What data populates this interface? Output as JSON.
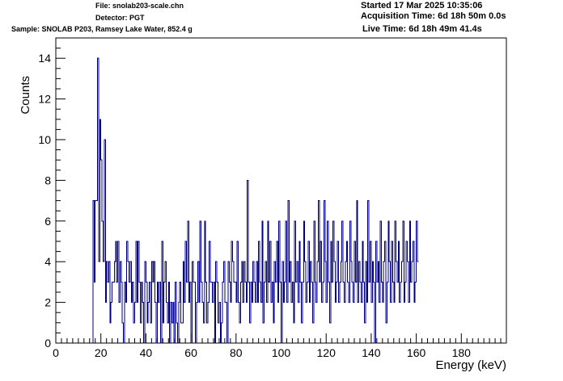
{
  "header": {
    "file_line": "File: snolab203-scale.chn",
    "detector_line": "Detector: PGT",
    "sample_line": "Sample: SNOLAB P203, Ramsey Lake Water, 852.4 g",
    "started_line": "Started 17 Mar 2025 10:35:06",
    "acquisition_line": "Acquisition Time: 6d 18h 50m 0.0s",
    "live_line": "Live Time: 6d 18h 49m 41.4s"
  },
  "chart_data": {
    "type": "histogram",
    "title": "",
    "xlabel": "Energy (keV)",
    "ylabel": "Counts",
    "xlim": [
      0,
      200
    ],
    "ylim": [
      0,
      15
    ],
    "x_ticks": [
      0,
      20,
      40,
      60,
      80,
      100,
      120,
      140,
      160,
      180
    ],
    "y_ticks": [
      0,
      2,
      4,
      6,
      8,
      10,
      12,
      14
    ],
    "grid": false,
    "legend": "none",
    "line_color": "#000080",
    "bin_width": 0.5,
    "bin_start": 16.5,
    "counts": [
      7,
      3,
      7,
      7,
      14,
      4,
      11,
      9,
      6,
      4,
      10,
      2,
      4,
      3,
      4,
      1,
      2,
      3,
      3,
      4,
      5,
      3,
      5,
      2,
      4,
      3,
      1,
      0,
      3,
      2,
      5,
      4,
      3,
      4,
      2,
      3,
      1,
      2,
      5,
      2,
      5,
      3,
      1,
      3,
      2,
      0,
      4,
      3,
      1,
      2,
      3,
      1,
      4,
      3,
      4,
      2,
      0,
      3,
      2,
      3,
      0,
      5,
      1,
      3,
      4,
      2,
      1,
      3,
      0,
      2,
      1,
      2,
      0,
      3,
      1,
      0,
      2,
      3,
      1,
      1,
      4,
      2,
      5,
      3,
      6,
      2,
      3,
      0,
      4,
      3,
      3,
      0,
      2,
      4,
      2,
      6,
      3,
      2,
      1,
      6,
      3,
      1,
      2,
      5,
      3,
      3,
      2,
      3,
      0,
      4,
      3,
      1,
      2,
      0,
      1,
      3,
      4,
      2,
      2,
      0,
      4,
      3,
      2,
      5,
      4,
      3,
      3,
      2,
      5,
      2,
      1,
      3,
      4,
      2,
      4,
      3,
      2,
      8,
      3,
      1,
      3,
      2,
      4,
      3,
      2,
      4,
      2,
      5,
      3,
      2,
      6,
      1,
      3,
      4,
      2,
      6,
      3,
      5,
      2,
      3,
      1,
      4,
      3,
      5,
      2,
      6,
      3,
      0,
      4,
      2,
      3,
      6,
      2,
      7,
      3,
      4,
      2,
      3,
      1,
      6,
      3,
      4,
      2,
      5,
      3,
      1,
      3,
      6,
      4,
      2,
      3,
      5,
      2,
      4,
      3,
      1,
      6,
      3,
      2,
      4,
      7,
      3,
      5,
      2,
      3,
      7,
      4,
      2,
      6,
      3,
      1,
      5,
      3,
      6,
      4,
      2,
      3,
      5,
      2,
      3,
      4,
      6,
      3,
      2,
      4,
      5,
      3,
      2,
      6,
      4,
      3,
      2,
      5,
      3,
      7,
      2,
      4,
      3,
      2,
      5,
      3,
      1,
      4,
      2,
      7,
      3,
      5,
      2,
      4,
      3,
      0,
      5,
      3,
      4,
      2,
      6,
      3,
      2,
      4,
      5,
      1,
      3,
      6,
      4,
      2,
      5,
      3,
      2,
      6,
      4,
      3,
      5,
      2,
      3,
      4,
      6,
      2,
      3,
      5,
      4,
      2,
      6,
      3,
      4,
      5,
      2,
      3,
      6,
      4
    ]
  }
}
